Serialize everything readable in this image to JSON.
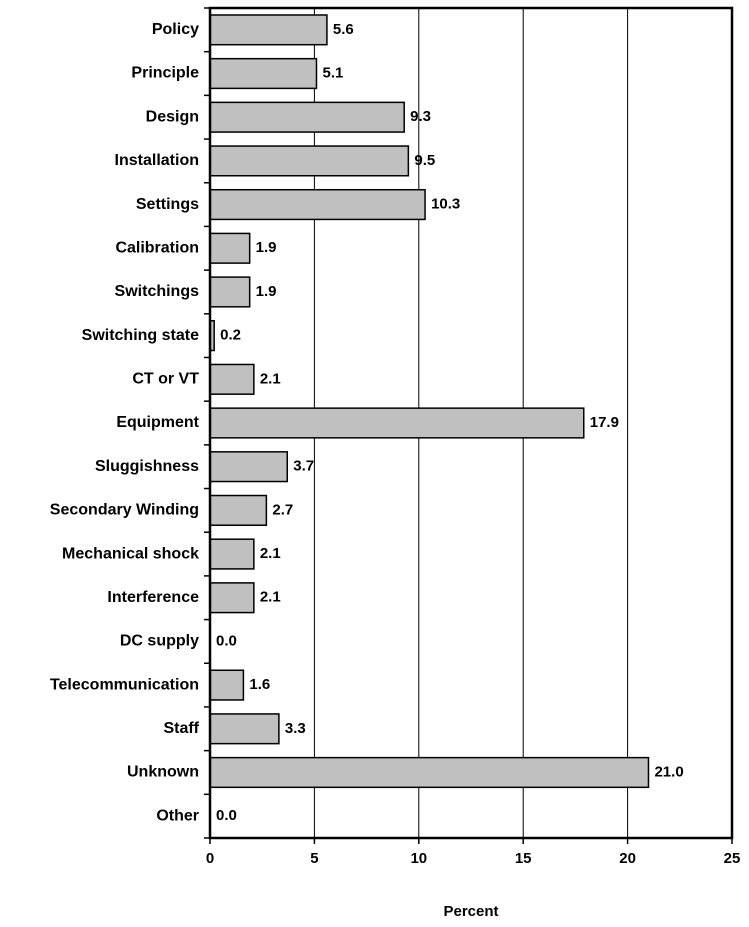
{
  "chart_data": {
    "type": "bar",
    "orientation": "horizontal",
    "categories": [
      "Policy",
      "Principle",
      "Design",
      "Installation",
      "Settings",
      "Calibration",
      "Switchings",
      "Switching state",
      "CT or VT",
      "Equipment",
      "Sluggishness",
      "Secondary Winding",
      "Mechanical shock",
      "Interference",
      "DC supply",
      "Telecommunication",
      "Staff",
      "Unknown",
      "Other"
    ],
    "values": [
      5.6,
      5.1,
      9.3,
      9.5,
      10.3,
      1.9,
      1.9,
      0.2,
      2.1,
      17.9,
      3.7,
      2.7,
      2.1,
      2.1,
      0.0,
      1.6,
      3.3,
      21.0,
      0.0
    ],
    "value_labels": [
      "5.6",
      "5.1",
      "9.3",
      "9.5",
      "10.3",
      "1.9",
      "1.9",
      "0.2",
      "2.1",
      "17.9",
      "3.7",
      "2.7",
      "2.1",
      "2.1",
      "0.0",
      "1.6",
      "3.3",
      "21.0",
      "0.0"
    ],
    "color": "#c0c0c0",
    "xlim": [
      0,
      25
    ],
    "xticks": [
      0,
      5,
      10,
      15,
      20,
      25
    ],
    "x_label": "Percent",
    "grid": true
  }
}
